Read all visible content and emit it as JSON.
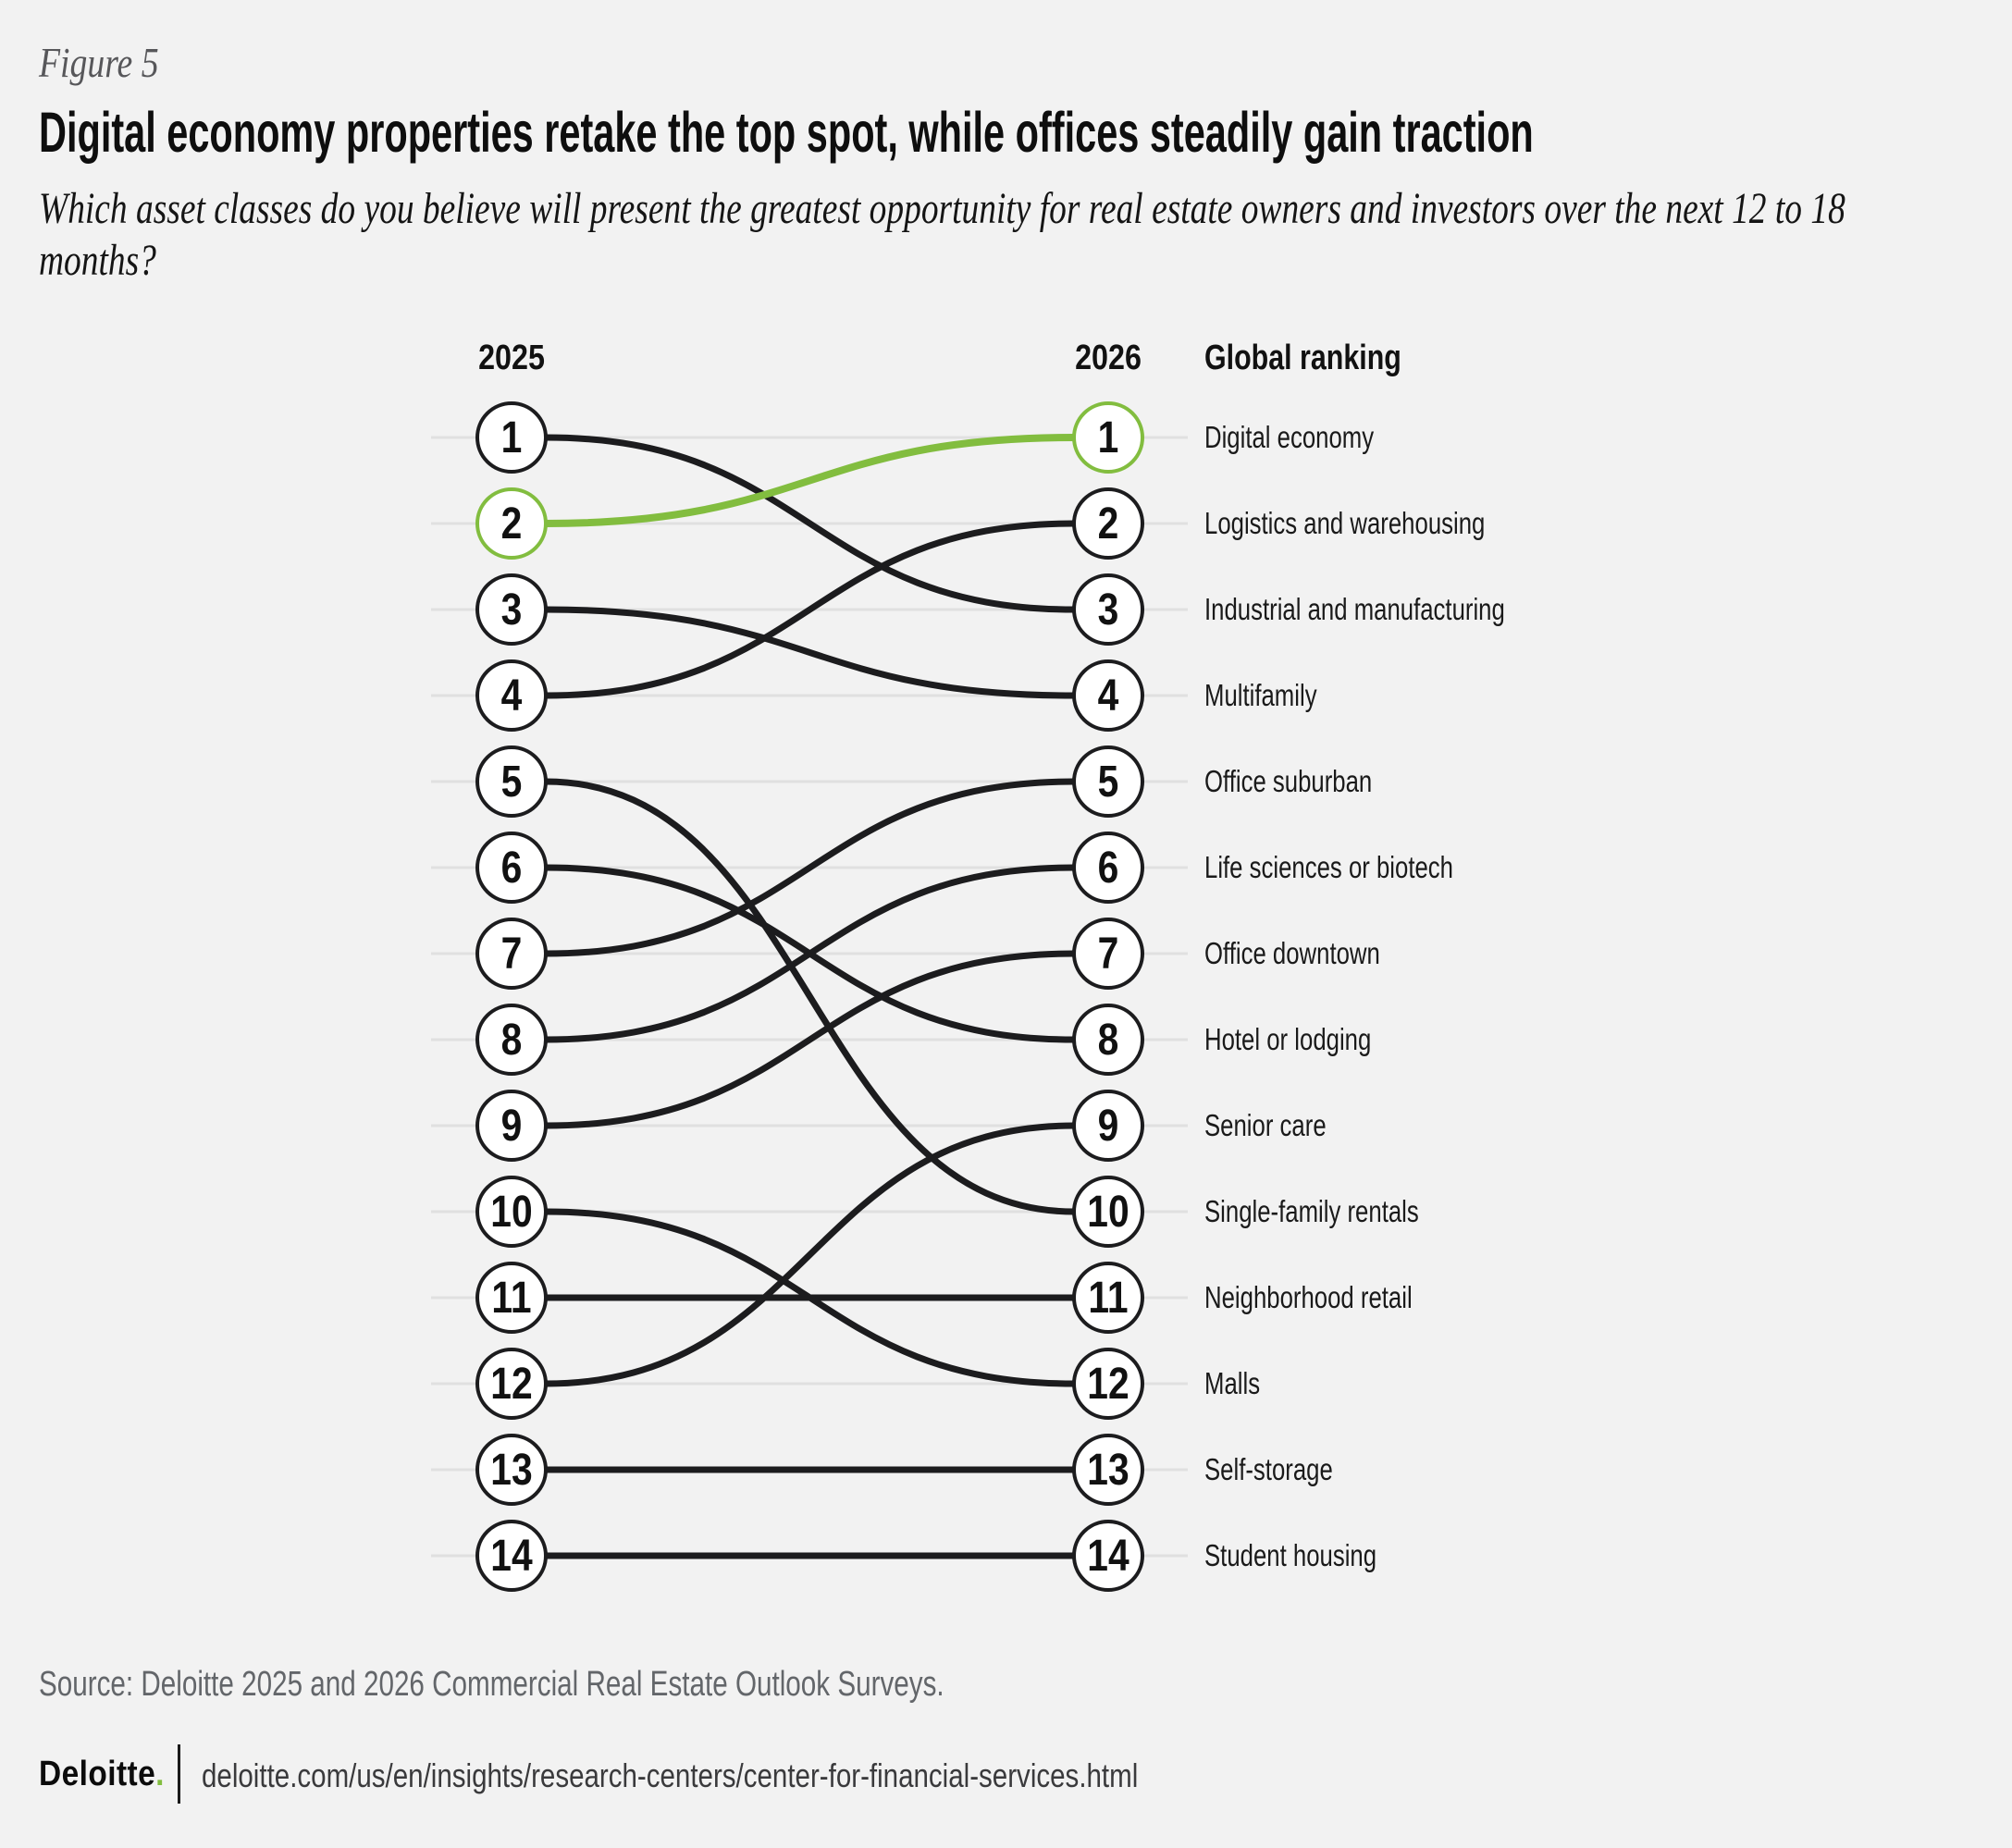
{
  "header": {
    "figure_label": "Figure 5",
    "title": "Digital economy properties retake the top spot, while offices steadily gain traction",
    "subtitle": "Which asset classes do you believe will present the greatest opportunity for real estate owners and investors over the next 12 to 18 months?"
  },
  "chart_data": {
    "type": "slope",
    "columns": {
      "left": "2025",
      "right": "2026"
    },
    "ranking_header": "Global ranking",
    "items": [
      {
        "label": "Digital economy",
        "rank_2025": 2,
        "rank_2026": 1,
        "highlight": true
      },
      {
        "label": "Logistics and warehousing",
        "rank_2025": 4,
        "rank_2026": 2,
        "highlight": false
      },
      {
        "label": "Industrial and manufacturing",
        "rank_2025": 1,
        "rank_2026": 3,
        "highlight": false
      },
      {
        "label": "Multifamily",
        "rank_2025": 3,
        "rank_2026": 4,
        "highlight": false
      },
      {
        "label": "Office suburban",
        "rank_2025": 7,
        "rank_2026": 5,
        "highlight": false
      },
      {
        "label": "Life sciences or biotech",
        "rank_2025": 8,
        "rank_2026": 6,
        "highlight": false
      },
      {
        "label": "Office downtown",
        "rank_2025": 9,
        "rank_2026": 7,
        "highlight": false
      },
      {
        "label": "Hotel or lodging",
        "rank_2025": 6,
        "rank_2026": 8,
        "highlight": false
      },
      {
        "label": "Senior care",
        "rank_2025": 12,
        "rank_2026": 9,
        "highlight": false
      },
      {
        "label": "Single-family rentals",
        "rank_2025": 5,
        "rank_2026": 10,
        "highlight": false
      },
      {
        "label": "Neighborhood retail",
        "rank_2025": 11,
        "rank_2026": 11,
        "highlight": false
      },
      {
        "label": "Malls",
        "rank_2025": 10,
        "rank_2026": 12,
        "highlight": false
      },
      {
        "label": "Self-storage",
        "rank_2025": 13,
        "rank_2026": 13,
        "highlight": false
      },
      {
        "label": "Student housing",
        "rank_2025": 14,
        "rank_2026": 14,
        "highlight": false
      }
    ],
    "colors": {
      "highlight_green": "#82bd3f",
      "line_black": "#1c1c1e",
      "gridline": "#e0e0e0",
      "circle_fill": "#ffffff"
    },
    "layout": {
      "legend_position": "right-labels",
      "grid": true
    }
  },
  "footer": {
    "source": "Source: Deloitte 2025 and 2026 Commercial Real Estate Outlook Surveys.",
    "logo_text": "Deloitte",
    "logo_dot": ".",
    "url": "deloitte.com/us/en/insights/research-centers/center-for-financial-services.html"
  }
}
